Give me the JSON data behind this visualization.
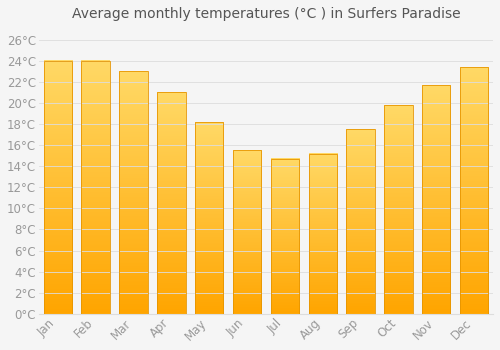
{
  "title": "Average monthly temperatures (°C ) in Surfers Paradise",
  "months": [
    "Jan",
    "Feb",
    "Mar",
    "Apr",
    "May",
    "Jun",
    "Jul",
    "Aug",
    "Sep",
    "Oct",
    "Nov",
    "Dec"
  ],
  "values": [
    24.0,
    24.0,
    23.0,
    21.0,
    18.2,
    15.5,
    14.7,
    15.2,
    17.5,
    19.8,
    21.7,
    23.4
  ],
  "bar_color_top": "#FFD966",
  "bar_color_bottom": "#FFA500",
  "bar_edge_color": "#E69500",
  "background_color": "#F5F5F5",
  "plot_bg_color": "#F5F5F5",
  "grid_color": "#DDDDDD",
  "text_color": "#999999",
  "title_color": "#555555",
  "ylim": [
    0,
    27
  ],
  "yticks": [
    0,
    2,
    4,
    6,
    8,
    10,
    12,
    14,
    16,
    18,
    20,
    22,
    24,
    26
  ],
  "title_fontsize": 10,
  "tick_fontsize": 8.5,
  "bar_width": 0.75
}
